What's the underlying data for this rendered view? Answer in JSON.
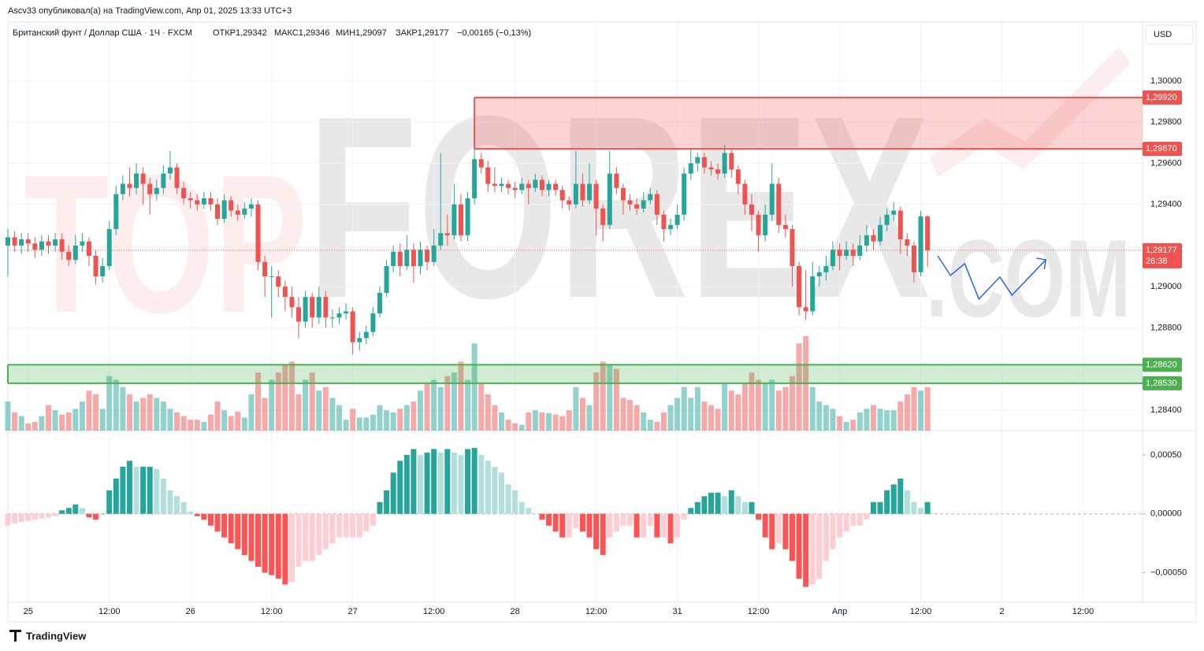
{
  "chart_data": {
    "type": "candlestick",
    "header": "Ascv33 опубликовал(а) на TradingView.com, Апр 01, 2025 13:33 UTC+3",
    "title": "Британский фунт / Доллар США · 1Ч · FXCM",
    "ohlc_labels": [
      "ОТКР1,29342",
      "МАКС1,29346",
      "МИН1,29097",
      "ЗАКР1,29177"
    ],
    "change": "−0,00165 (−0,13%)",
    "currency": "USD",
    "watermark": [
      "TOP",
      "FOREX",
      ".COM"
    ],
    "footer": "TradingView",
    "xlim": [
      0,
      167.8
    ],
    "xticks": [
      {
        "value": 3,
        "label": "25"
      },
      {
        "value": 15,
        "label": "12:00"
      },
      {
        "value": 27,
        "label": "26"
      },
      {
        "value": 39,
        "label": "12:00"
      },
      {
        "value": 51,
        "label": "27"
      },
      {
        "value": 63,
        "label": "12:00"
      },
      {
        "value": 75,
        "label": "28"
      },
      {
        "value": 87,
        "label": "12:00"
      },
      {
        "value": 99,
        "label": "31"
      },
      {
        "value": 111,
        "label": "12:00"
      },
      {
        "value": 123,
        "label": "Апр"
      },
      {
        "value": 135,
        "label": "12:00"
      },
      {
        "value": 147,
        "label": "2"
      },
      {
        "value": 159,
        "label": "12:00"
      }
    ],
    "ylim": [
      1.283,
      1.30287
    ],
    "yticks": [
      {
        "value": 1.3,
        "label": "1,30000"
      },
      {
        "value": 1.298,
        "label": "1,29800"
      },
      {
        "value": 1.296,
        "label": "1,29600"
      },
      {
        "value": 1.294,
        "label": "1,29400"
      },
      {
        "value": 1.29,
        "label": "1,29000"
      },
      {
        "value": 1.288,
        "label": "1,28800"
      },
      {
        "value": 1.284,
        "label": "1,28400"
      }
    ],
    "grid": true,
    "up_color": "#26a69a",
    "down_color": "#ef5350",
    "open": [
      1.292,
      1.2924,
      1.292,
      1.2923,
      1.2921,
      1.2918,
      1.2922,
      1.292,
      1.2923,
      1.2917,
      1.2913,
      1.292,
      1.2922,
      1.2915,
      1.2905,
      1.291,
      1.2928,
      1.2945,
      1.295,
      1.2948,
      1.2955,
      1.295,
      1.2945,
      1.2948,
      1.2955,
      1.2958,
      1.2948,
      1.2943,
      1.2942,
      1.294,
      1.2943,
      1.294,
      1.2933,
      1.2942,
      1.2937,
      1.2935,
      1.2938,
      1.294,
      1.2912,
      1.2905,
      1.2905,
      1.29,
      1.2895,
      1.289,
      1.2883,
      1.2895,
      1.2885,
      1.2895,
      1.2885,
      1.2885,
      1.2887,
      1.2888,
      1.2873,
      1.2875,
      1.2878,
      1.2887,
      1.2897,
      1.291,
      1.2917,
      1.291,
      1.2918,
      1.291,
      1.2918,
      1.2912,
      1.292,
      1.2926,
      1.2925,
      1.294,
      1.2925,
      1.2943,
      1.2962,
      1.2958,
      1.295,
      1.2949,
      1.295,
      1.2948,
      1.2947,
      1.295,
      1.2948,
      1.2952,
      1.2947,
      1.295,
      1.2947,
      1.2942,
      1.294,
      1.295,
      1.2942,
      1.295,
      1.2938,
      1.293,
      1.2955,
      1.2948,
      1.2942,
      1.294,
      1.2938,
      1.2942,
      1.2945,
      1.2935,
      1.2928,
      1.293,
      1.2935,
      1.2955,
      1.296,
      1.2963,
      1.2958,
      1.2957,
      1.2955,
      1.2965,
      1.2957,
      1.295,
      1.294,
      1.2935,
      1.2925,
      1.2935,
      1.295,
      1.293,
      1.2928,
      1.291,
      1.289,
      1.2888,
      1.2905,
      1.2907,
      1.291,
      1.2918,
      1.2915,
      1.2918,
      1.2915,
      1.292,
      1.2925,
      1.2922,
      1.293,
      1.2935,
      1.2937,
      1.2923,
      1.292,
      1.2907,
      1.29342
    ],
    "high": [
      1.2928,
      1.2927,
      1.2926,
      1.2926,
      1.2924,
      1.2925,
      1.2925,
      1.2926,
      1.2926,
      1.292,
      1.2925,
      1.2926,
      1.2924,
      1.2918,
      1.2914,
      1.2932,
      1.2949,
      1.2954,
      1.2958,
      1.296,
      1.2958,
      1.2953,
      1.2952,
      1.2959,
      1.2966,
      1.296,
      1.2951,
      1.2946,
      1.2945,
      1.2946,
      1.2946,
      1.2943,
      1.2945,
      1.2944,
      1.294,
      1.2941,
      1.2943,
      1.2942,
      1.2915,
      1.291,
      1.2908,
      1.2903,
      1.29,
      1.2895,
      1.2898,
      1.2897,
      1.29,
      1.2898,
      1.2889,
      1.289,
      1.2892,
      1.289,
      1.2878,
      1.2881,
      1.289,
      1.29,
      1.2913,
      1.292,
      1.2921,
      1.2925,
      1.2921,
      1.2922,
      1.292,
      1.2928,
      1.2965,
      1.2935,
      1.295,
      1.2945,
      1.2946,
      1.2967,
      1.2965,
      1.2961,
      1.2958,
      1.2953,
      1.2952,
      1.2951,
      1.2953,
      1.2952,
      1.2955,
      1.2954,
      1.2952,
      1.2952,
      1.2949,
      1.2944,
      1.2966,
      1.2955,
      1.296,
      1.2952,
      1.294,
      1.2966,
      1.2958,
      1.295,
      1.2945,
      1.2943,
      1.2946,
      1.2948,
      1.2947,
      1.2937,
      1.2933,
      1.294,
      1.2958,
      1.2967,
      1.2965,
      1.2965,
      1.2961,
      1.296,
      1.2969,
      1.2967,
      1.2959,
      1.2952,
      1.2945,
      1.2937,
      1.294,
      1.296,
      1.2953,
      1.2935,
      1.293,
      1.2912,
      1.2908,
      1.2912,
      1.291,
      1.2915,
      1.2922,
      1.2921,
      1.2922,
      1.2921,
      1.2925,
      1.293,
      1.2928,
      1.2934,
      1.2938,
      1.2941,
      1.2939,
      1.2926,
      1.2922,
      1.2937,
      1.29346
    ],
    "low": [
      1.2905,
      1.2917,
      1.2916,
      1.2917,
      1.2914,
      1.2915,
      1.2916,
      1.2917,
      1.2913,
      1.291,
      1.2911,
      1.2917,
      1.291,
      1.2901,
      1.2902,
      1.2908,
      1.2925,
      1.2942,
      1.2944,
      1.2945,
      1.294,
      1.2935,
      1.2942,
      1.2945,
      1.2952,
      1.2945,
      1.294,
      1.2938,
      1.2937,
      1.2938,
      1.2937,
      1.293,
      1.2931,
      1.2934,
      1.2932,
      1.2933,
      1.2934,
      1.2908,
      1.2895,
      1.2885,
      1.2895,
      1.2888,
      1.2885,
      1.2875,
      1.288,
      1.288,
      1.2882,
      1.288,
      1.288,
      1.2882,
      1.2884,
      1.2867,
      1.2869,
      1.2872,
      1.2876,
      1.2885,
      1.2895,
      1.2907,
      1.2905,
      1.2908,
      1.2902,
      1.2906,
      1.2908,
      1.291,
      1.2918,
      1.292,
      1.2923,
      1.2922,
      1.2922,
      1.294,
      1.2955,
      1.2946,
      1.2946,
      1.2946,
      1.2945,
      1.2943,
      1.2945,
      1.294,
      1.2946,
      1.2944,
      1.2944,
      1.2944,
      1.2938,
      1.2937,
      1.2938,
      1.2939,
      1.294,
      1.2925,
      1.2922,
      1.2928,
      1.2945,
      1.2935,
      1.2937,
      1.2935,
      1.2936,
      1.294,
      1.293,
      1.2922,
      1.2925,
      1.2928,
      1.2932,
      1.2952,
      1.2956,
      1.2955,
      1.2954,
      1.2952,
      1.2953,
      1.2953,
      1.2945,
      1.2935,
      1.2927,
      1.2917,
      1.2922,
      1.2932,
      1.2926,
      1.2924,
      1.29,
      1.2886,
      1.2884,
      1.2886,
      1.29,
      1.2903,
      1.2908,
      1.2908,
      1.2913,
      1.291,
      1.2913,
      1.2917,
      1.2918,
      1.292,
      1.2927,
      1.2932,
      1.2916,
      1.2915,
      1.2902,
      1.2905,
      1.29097
    ],
    "close": [
      1.2924,
      1.292,
      1.2923,
      1.2921,
      1.2918,
      1.2922,
      1.292,
      1.2923,
      1.2917,
      1.2913,
      1.292,
      1.2922,
      1.2915,
      1.2905,
      1.291,
      1.2928,
      1.2945,
      1.295,
      1.2948,
      1.2955,
      1.295,
      1.2945,
      1.2948,
      1.2955,
      1.2958,
      1.2948,
      1.2943,
      1.2942,
      1.294,
      1.2943,
      1.294,
      1.2933,
      1.2942,
      1.2937,
      1.2935,
      1.2938,
      1.294,
      1.2912,
      1.2905,
      1.2905,
      1.29,
      1.2895,
      1.289,
      1.2883,
      1.2895,
      1.2885,
      1.2895,
      1.2885,
      1.2885,
      1.2887,
      1.2888,
      1.2873,
      1.2875,
      1.2878,
      1.2887,
      1.2897,
      1.291,
      1.2917,
      1.291,
      1.2918,
      1.291,
      1.2918,
      1.2912,
      1.292,
      1.2926,
      1.2925,
      1.294,
      1.2925,
      1.2943,
      1.2962,
      1.2958,
      1.295,
      1.2949,
      1.295,
      1.2948,
      1.2947,
      1.295,
      1.2948,
      1.2952,
      1.2947,
      1.295,
      1.2947,
      1.2942,
      1.294,
      1.295,
      1.2942,
      1.295,
      1.2938,
      1.293,
      1.2955,
      1.2948,
      1.2942,
      1.294,
      1.2938,
      1.2942,
      1.2945,
      1.2935,
      1.2928,
      1.293,
      1.2935,
      1.2955,
      1.296,
      1.2963,
      1.2958,
      1.2957,
      1.2955,
      1.2965,
      1.2957,
      1.295,
      1.294,
      1.2935,
      1.2925,
      1.2935,
      1.295,
      1.293,
      1.2928,
      1.291,
      1.289,
      1.2888,
      1.2905,
      1.2907,
      1.291,
      1.2918,
      1.2915,
      1.2918,
      1.2915,
      1.292,
      1.2925,
      1.2922,
      1.293,
      1.2935,
      1.2937,
      1.2923,
      1.292,
      1.2907,
      1.29342,
      1.29177
    ],
    "volume": [
      40,
      25,
      20,
      10,
      12,
      20,
      35,
      28,
      22,
      25,
      30,
      40,
      55,
      50,
      30,
      75,
      70,
      60,
      50,
      40,
      45,
      50,
      45,
      40,
      30,
      25,
      20,
      15,
      15,
      12,
      22,
      40,
      28,
      20,
      26,
      18,
      50,
      80,
      45,
      70,
      80,
      90,
      95,
      50,
      70,
      80,
      55,
      60,
      45,
      35,
      15,
      30,
      18,
      18,
      22,
      35,
      28,
      25,
      30,
      35,
      40,
      55,
      65,
      70,
      60,
      75,
      80,
      95,
      70,
      120,
      65,
      50,
      35,
      25,
      15,
      10,
      8,
      25,
      28,
      25,
      24,
      22,
      20,
      28,
      60,
      45,
      35,
      80,
      95,
      90,
      85,
      45,
      42,
      35,
      25,
      15,
      12,
      25,
      35,
      45,
      60,
      45,
      60,
      40,
      35,
      30,
      65,
      55,
      50,
      65,
      80,
      70,
      65,
      70,
      55,
      60,
      75,
      120,
      130,
      60,
      40,
      35,
      30,
      20,
      12,
      15,
      25,
      30,
      35,
      30,
      28,
      28,
      40,
      50,
      60,
      55,
      60
    ],
    "zones": [
      {
        "range": [
          {
            "value": 1.2992,
            "label": "1,29920"
          },
          {
            "value": 1.2967,
            "label": "1,29670"
          }
        ],
        "x_start": 69,
        "color": "#ef5350"
      },
      {
        "range": [
          {
            "value": 1.2862,
            "label": "1,28620"
          },
          {
            "value": 1.2853,
            "label": "1,28530"
          }
        ],
        "x_start": 0,
        "color": "#4caf50"
      }
    ],
    "last_price": {
      "value": 1.29177,
      "label": "1,29177"
    },
    "countdown": "26:38",
    "forecast": {
      "x": [
        137.5,
        139.4,
        141.5,
        143.6,
        146.7,
        148.5,
        153.5
      ],
      "y": [
        1.2915,
        1.29055,
        1.29112,
        1.2894,
        1.29047,
        1.28959,
        1.29131
      ],
      "color": "#2962ff"
    },
    "indicator": {
      "ylim": [
        -0.00075,
        0.0007
      ],
      "yticks": [
        {
          "value": 0.0005,
          "label": "0,00050"
        },
        {
          "value": 0,
          "label": "0,00000"
        },
        {
          "value": -0.0005,
          "label": "−0,00050"
        }
      ],
      "values": [
        -0.0001,
        -8e-05,
        -7e-05,
        -6e-05,
        -5e-05,
        -4e-05,
        -3e-05,
        -2e-05,
        3e-05,
        5e-05,
        8e-05,
        5e-05,
        -3e-05,
        -5e-05,
        0,
        0.0002,
        0.0003,
        0.0004,
        0.00045,
        0.0004,
        0.0004,
        0.0004,
        0.00038,
        0.0003,
        0.0002,
        0.00015,
        0.0001,
        2e-05,
        -2e-05,
        -5e-05,
        -0.0001,
        -0.00015,
        -0.0002,
        -0.00025,
        -0.0003,
        -0.00035,
        -0.0004,
        -0.00045,
        -0.0005,
        -0.00052,
        -0.00055,
        -0.0006,
        -0.00058,
        -0.00045,
        -0.0004,
        -0.0004,
        -0.00035,
        -0.0003,
        -0.00025,
        -0.0002,
        -0.0002,
        -0.0002,
        -0.0002,
        -0.00015,
        -0.0001,
        0.0001,
        0.0002,
        0.00035,
        0.00045,
        0.0005,
        0.00055,
        0.0005,
        0.00052,
        0.00055,
        0.00052,
        0.00055,
        0.00052,
        0.0005,
        0.00055,
        0.00056,
        0.0005,
        0.00045,
        0.0004,
        0.00035,
        0.00025,
        0.0002,
        0.0001,
        5e-05,
        0,
        -5e-05,
        -0.0001,
        -0.00015,
        -0.0002,
        -0.0002,
        -0.00012,
        -0.00015,
        -0.0002,
        -0.0003,
        -0.00035,
        -0.0002,
        -0.00015,
        -0.0001,
        -0.0001,
        -0.0002,
        -0.0002,
        -0.0001,
        -0.0002,
        -0.0002,
        -0.00025,
        -0.0002,
        -5e-05,
        5e-05,
        0.0001,
        0.00015,
        0.00018,
        0.00018,
        0.00015,
        0.0002,
        0.00015,
        0.0001,
        0.0001,
        -5e-05,
        -0.0002,
        -0.0003,
        -0.00025,
        -0.0003,
        -0.0004,
        -0.00055,
        -0.00062,
        -0.0006,
        -0.00055,
        -0.0004,
        -0.0003,
        -0.0002,
        -0.00015,
        -0.0001,
        -0.0001,
        -5e-05,
        0.0001,
        0.0001,
        0.0002,
        0.00025,
        0.0003,
        0.0002,
        0.0001,
        5e-05,
        0.0001
      ]
    }
  }
}
